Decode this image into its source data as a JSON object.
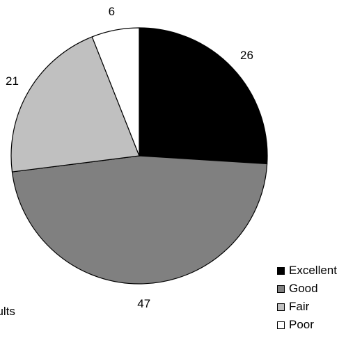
{
  "chart_data": {
    "type": "pie",
    "categories": [
      "Excellent",
      "Good",
      "Fair",
      "Poor"
    ],
    "values": [
      26,
      47,
      21,
      6
    ],
    "colors": [
      "#000000",
      "#808080",
      "#c0c0c0",
      "#ffffff"
    ],
    "start": "12 o'clock",
    "direction": "clockwise",
    "legend": "bottom-right",
    "title": "",
    "footnote_fragment": "dults"
  }
}
